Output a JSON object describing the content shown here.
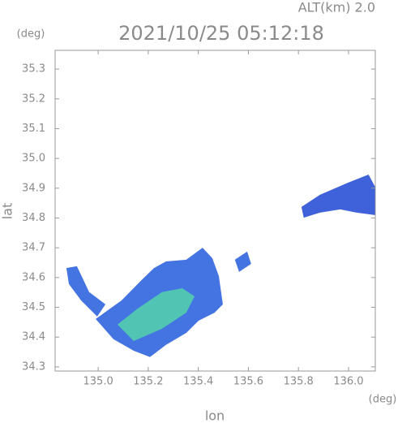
{
  "chart_data": {
    "type": "polygon",
    "title": "2021/10/25 05:12:18",
    "subtitle": "ALT(km) 2.0",
    "ylabel": "lat",
    "xlabel": "lon",
    "y_unit": "(deg)",
    "x_unit": "(deg)",
    "xlim": [
      134.828,
      136.107
    ],
    "ylim": [
      34.286,
      35.363
    ],
    "xticks": [
      {
        "value": 135,
        "label": "135.0"
      },
      135.2,
      135.4,
      135.6,
      135.8,
      {
        "value": 136,
        "label": "136.0"
      }
    ],
    "yticks": [
      34.3,
      34.4,
      34.5,
      34.6,
      34.7,
      34.8,
      34.9,
      {
        "value": 35,
        "label": "35.0"
      },
      35.1,
      35.2,
      35.3
    ],
    "series": [
      {
        "color": "#3a6be0",
        "x": [
          134.99,
          135.093,
          135.174,
          135.223,
          135.271,
          135.352,
          135.417,
          135.456,
          135.482,
          135.498,
          135.465,
          135.401,
          135.352,
          135.271,
          135.207,
          135.142,
          135.061
        ],
        "values": [
          34.461,
          34.523,
          34.592,
          34.632,
          34.654,
          34.66,
          34.7,
          34.665,
          34.605,
          34.51,
          34.482,
          34.455,
          34.414,
          34.374,
          34.333,
          34.354,
          34.393
        ]
      },
      {
        "color": "#52c8b0",
        "x": [
          135.077,
          135.158,
          135.255,
          135.336,
          135.385,
          135.352,
          135.255,
          135.142
        ],
        "values": [
          34.442,
          34.496,
          34.551,
          34.564,
          34.537,
          34.482,
          34.428,
          34.387
        ]
      },
      {
        "color": "#3a6be0",
        "x": [
          134.873,
          134.915,
          134.964,
          135.029,
          134.996,
          134.932,
          134.883
        ],
        "values": [
          34.632,
          34.638,
          34.551,
          34.51,
          34.469,
          34.523,
          34.578
        ]
      },
      {
        "color": "#3558d8",
        "x": [
          135.812,
          135.886,
          135.999,
          136.08,
          136.106,
          136.106,
          136.032,
          135.967,
          135.886,
          135.821
        ],
        "values": [
          34.837,
          34.878,
          34.919,
          34.946,
          34.905,
          34.81,
          34.818,
          34.829,
          34.818,
          34.801
        ]
      },
      {
        "color": "#3a6be0",
        "x": [
          135.546,
          135.595,
          135.611,
          135.563
        ],
        "values": [
          34.66,
          34.687,
          34.646,
          34.619
        ]
      }
    ]
  }
}
